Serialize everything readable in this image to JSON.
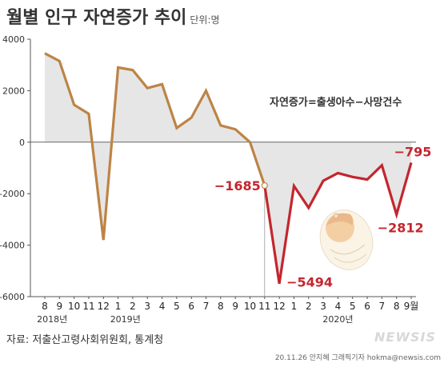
{
  "title": "월별 인구 자연증가 추이",
  "unit": "단위:명",
  "formula": "자연증가=출생아수−사망건수",
  "source": "자료: 저출산고령사회위원회, 통계청",
  "credit": "20.11.26 안지혜 그래픽기자 hokma@newsis.com",
  "watermark": "NEWSIS",
  "colors": {
    "area": "#e6e6e6",
    "line_2018_2019": "#bd8446",
    "line_2020": "#c4262e",
    "label_red": "#c4262e"
  },
  "chart_data": {
    "type": "line",
    "ylim": [
      -6000,
      4000
    ],
    "yticks": [
      4000,
      2000,
      0,
      -2000,
      -4000,
      -6000
    ],
    "ytick_labels": [
      "4000",
      "2000",
      "0",
      "-2000",
      "-4000",
      "-6000"
    ],
    "xtick_labels": [
      "8",
      "9",
      "10",
      "11",
      "12",
      "1",
      "2",
      "3",
      "4",
      "5",
      "6",
      "7",
      "8",
      "9",
      "10",
      "11",
      "12",
      "1",
      "2",
      "3",
      "4",
      "5",
      "6",
      "7",
      "8",
      "9월"
    ],
    "year_labels": [
      {
        "text": "2018년",
        "index": 0.5
      },
      {
        "text": "2019년",
        "index": 5.5
      },
      {
        "text": "2020년",
        "index": 20
      }
    ],
    "values": [
      3450,
      3150,
      1450,
      1100,
      -3800,
      2900,
      2800,
      2100,
      2250,
      550,
      950,
      2000,
      650,
      500,
      0,
      -1685,
      -5494,
      -1700,
      -2550,
      -1500,
      -1200,
      -1350,
      -1450,
      -900,
      -2812,
      -795
    ],
    "split_index": 15,
    "annotations": [
      {
        "index": 15,
        "label": "−1685",
        "anchor": "end",
        "dx": -5,
        "dy": 6
      },
      {
        "index": 16,
        "label": "−5494",
        "anchor": "start",
        "dx": 9,
        "dy": 4
      },
      {
        "index": 24,
        "label": "−2812",
        "anchor": "middle",
        "dx": 5,
        "dy": 22
      },
      {
        "index": 25,
        "label": "−795",
        "anchor": "middle",
        "dx": 2,
        "dy": -8
      }
    ],
    "grid": false
  }
}
